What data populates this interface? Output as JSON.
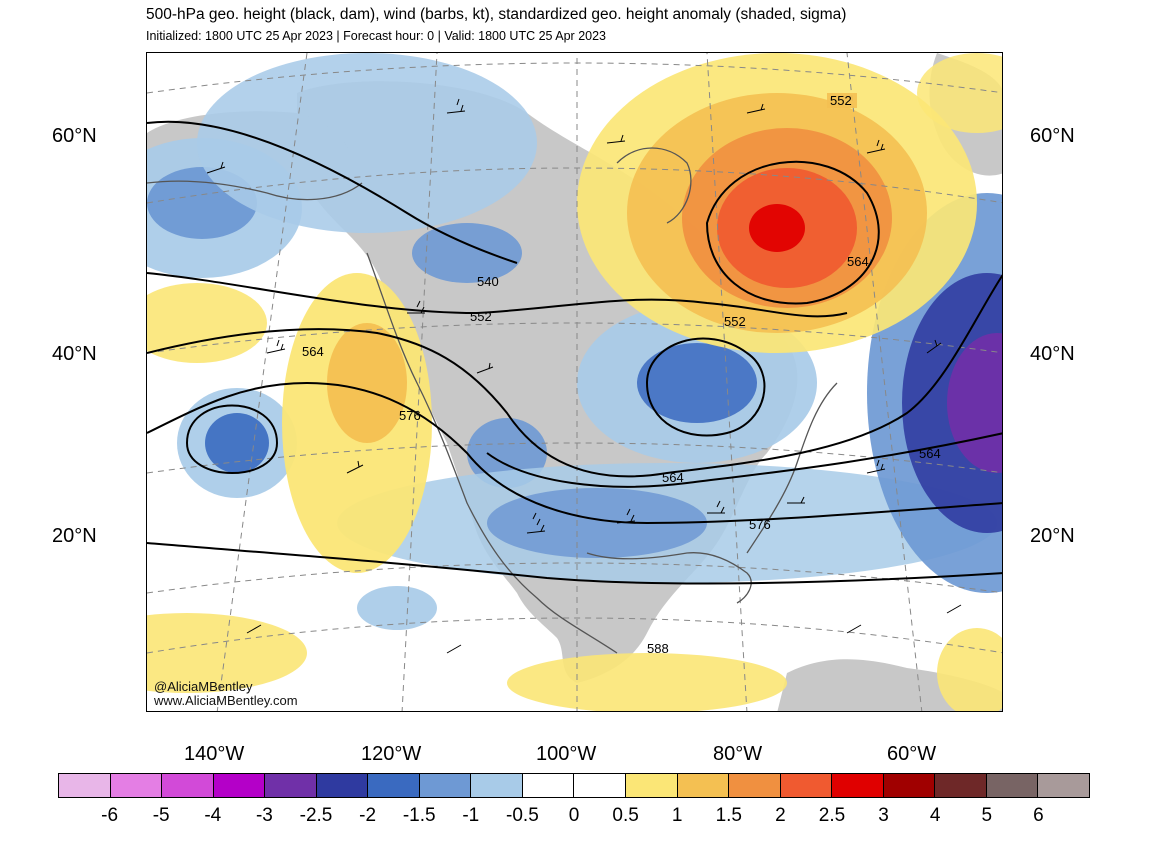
{
  "title": "500-hPa geo. height (black, dam), wind (barbs, kt), standardized geo. height anomaly (shaded, sigma)",
  "subtitle": "Initialized: 1800 UTC 25 Apr 2023 | Forecast hour: 0 | Valid: 1800 UTC 25 Apr 2023",
  "credit": [
    "@AliciaMBentley",
    "www.AliciaMBentley.com"
  ],
  "lat_labels": [
    "60°N",
    "40°N",
    "20°N"
  ],
  "lon_labels": [
    "140°W",
    "120°W",
    "100°W",
    "80°W",
    "60°W"
  ],
  "contour_labels": [
    "552",
    "564",
    "540",
    "552",
    "552",
    "564",
    "576",
    "564",
    "576",
    "564",
    "588"
  ],
  "colorbar": {
    "labels": [
      "-6",
      "-5",
      "-4",
      "-3",
      "-2.5",
      "-2",
      "-1.5",
      "-1",
      "-0.5",
      "0",
      "0.5",
      "1",
      "1.5",
      "2",
      "2.5",
      "3",
      "4",
      "5",
      "6"
    ],
    "colors": [
      "#e8b6e8",
      "#e47ee4",
      "#d24ad8",
      "#b400c8",
      "#7030a8",
      "#2f3aa0",
      "#3a6ac0",
      "#6e99d4",
      "#a8cbe8",
      "#ffffff",
      "#ffffff",
      "#fbe676",
      "#f4c052",
      "#f09040",
      "#f05a30",
      "#e00000",
      "#a00000",
      "#6e2828",
      "#786464",
      "#a89a9a"
    ]
  },
  "colors": {
    "land": "#c8c8c8",
    "coast": "#555555",
    "contour": "#000000",
    "grid": "#888888"
  }
}
